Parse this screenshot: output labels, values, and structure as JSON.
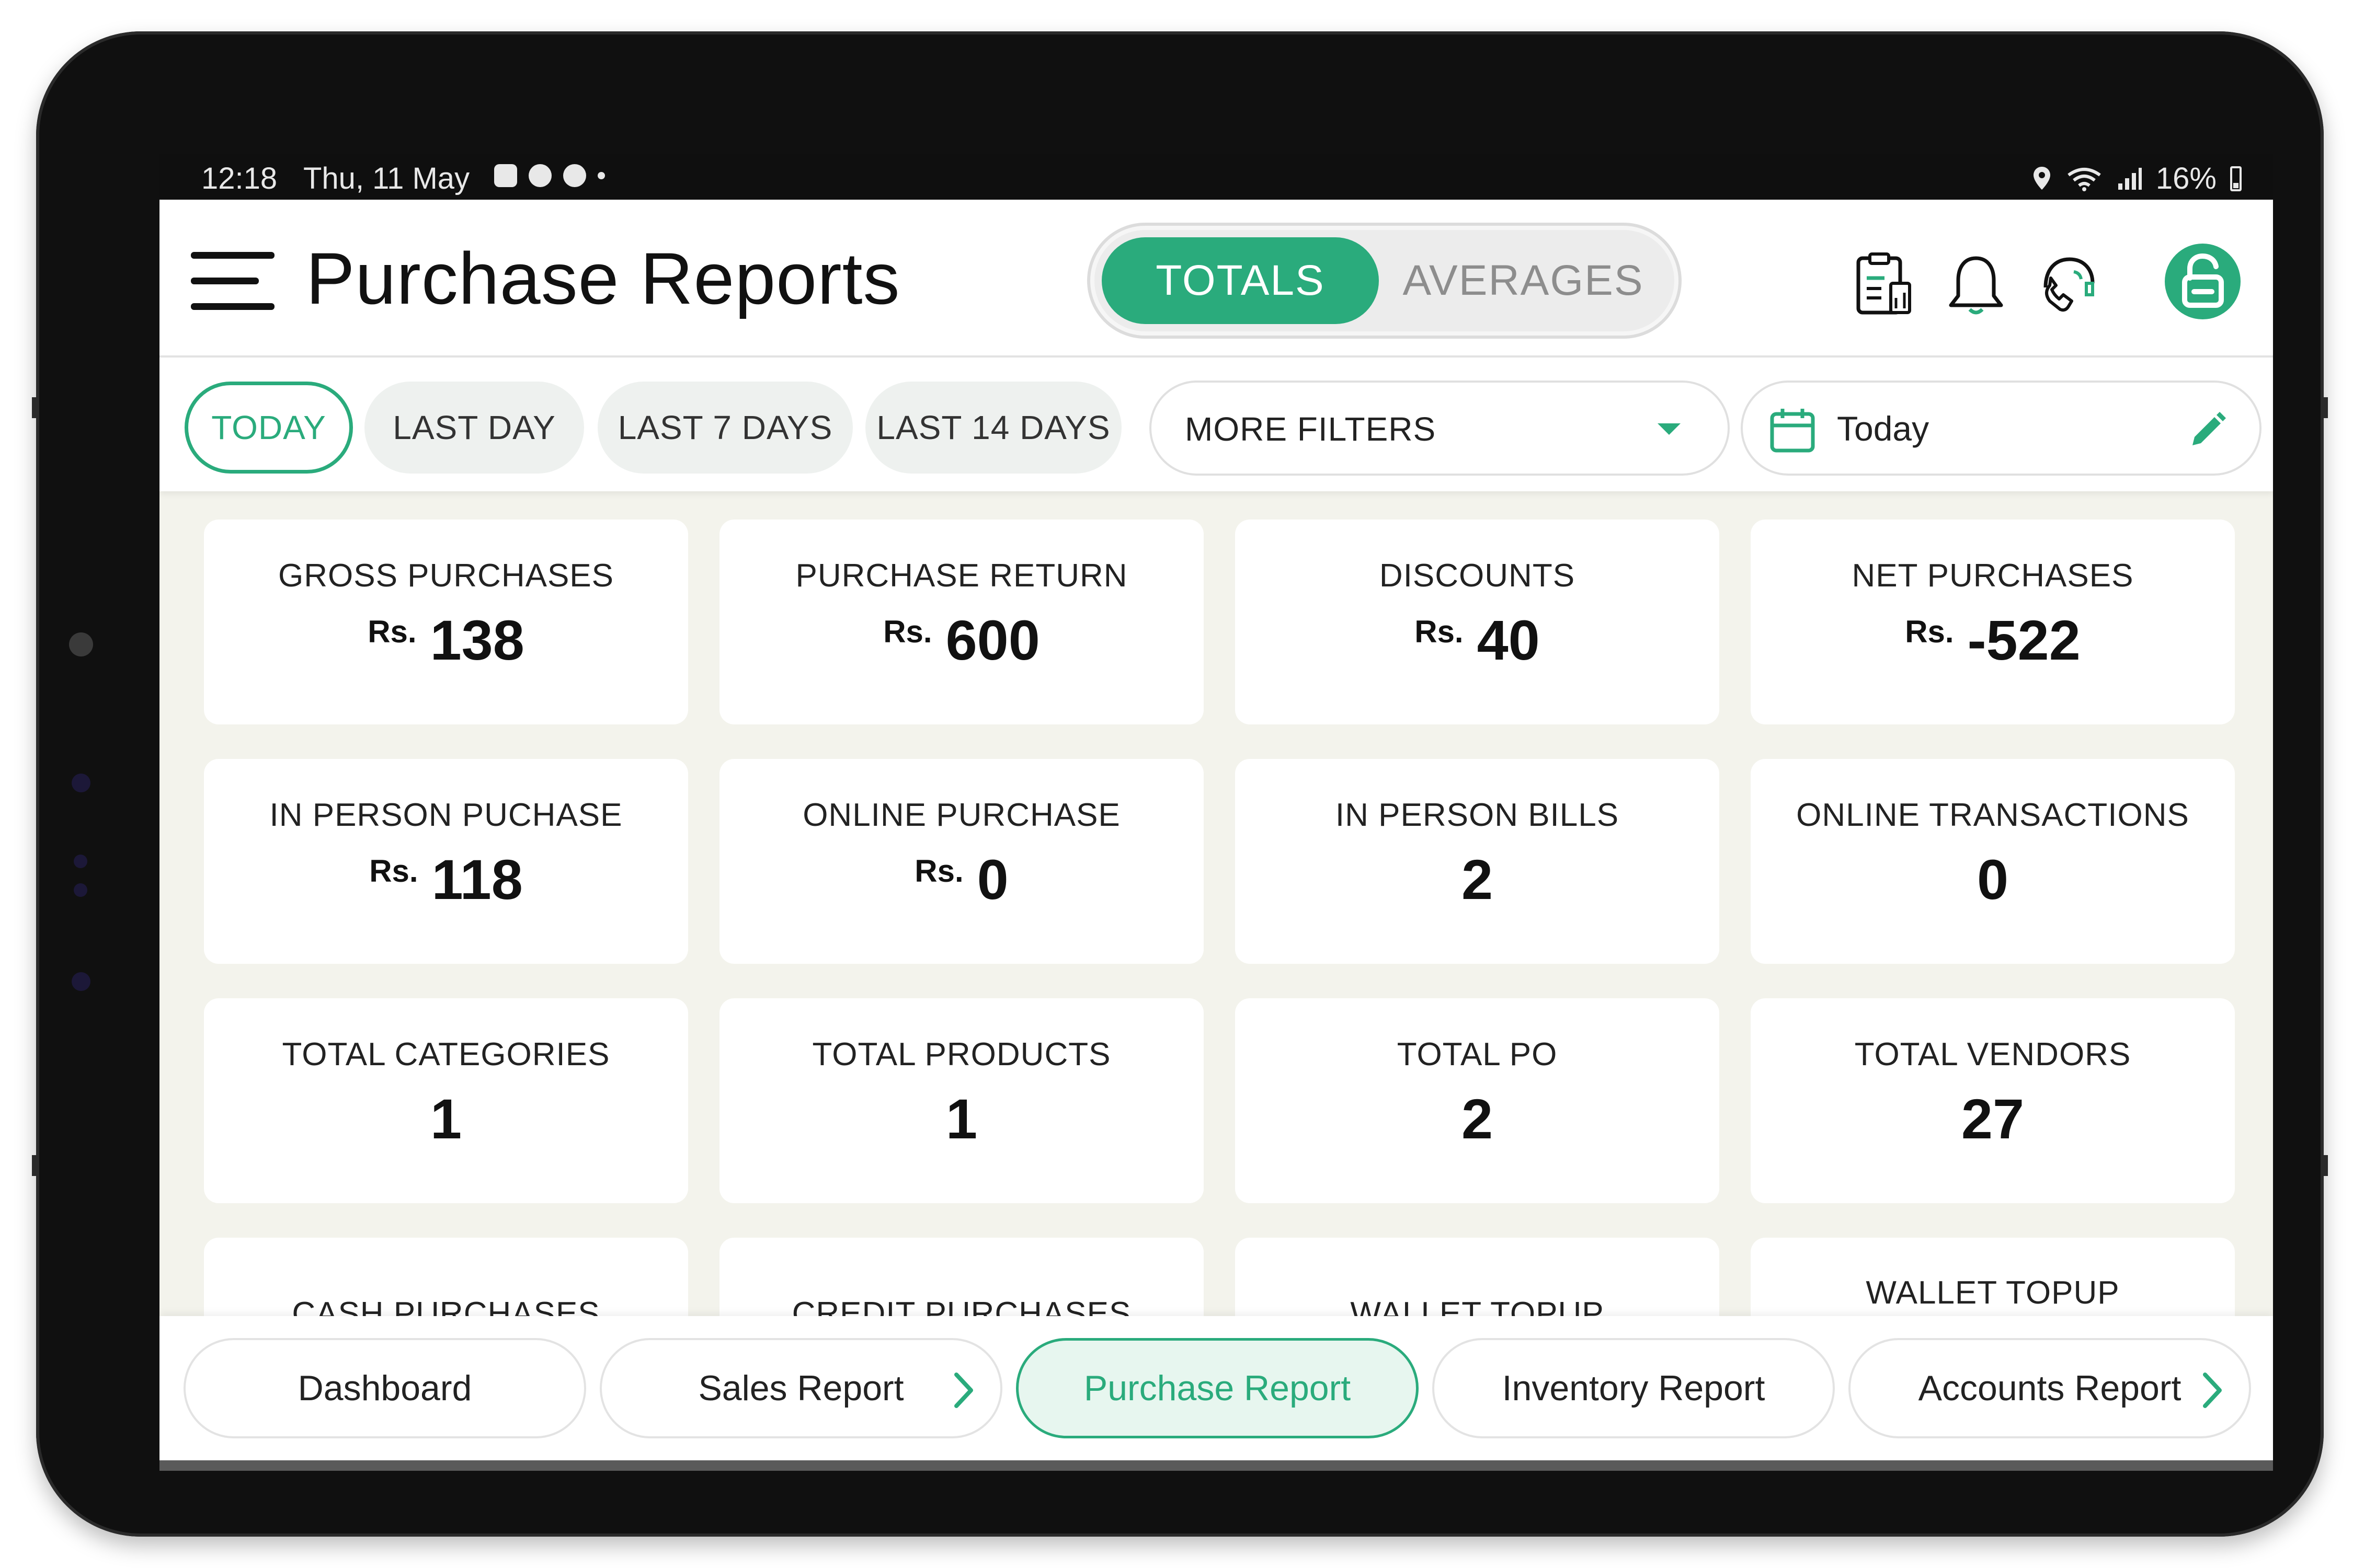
{
  "status_bar": {
    "time": "12:18",
    "date": "Thu, 11 May",
    "battery": "16%"
  },
  "header": {
    "title": "Purchase Reports",
    "toggle": {
      "totals": "TOTALS",
      "averages": "AVERAGES",
      "selected": "TOTALS"
    },
    "icons": [
      "menu-icon",
      "report-clipboard-icon",
      "bell-icon",
      "support-headset-icon",
      "unlock-icon"
    ]
  },
  "filters": {
    "chips": [
      "TODAY",
      "LAST DAY",
      "LAST 7 DAYS",
      "LAST 14 DAYS"
    ],
    "active": "TODAY",
    "more_filters": "MORE FILTERS",
    "date_value": "Today"
  },
  "metrics": [
    {
      "label": "GROSS PURCHASES",
      "currency": "Rs.",
      "value": "138"
    },
    {
      "label": "PURCHASE RETURN",
      "currency": "Rs.",
      "value": "600"
    },
    {
      "label": "DISCOUNTS",
      "currency": "Rs.",
      "value": "40"
    },
    {
      "label": "NET PURCHASES",
      "currency": "Rs.",
      "value": "-522"
    },
    {
      "label": "IN PERSON PUCHASE",
      "currency": "Rs.",
      "value": "118"
    },
    {
      "label": "ONLINE PURCHASE",
      "currency": "Rs.",
      "value": "0"
    },
    {
      "label": "IN PERSON BILLS",
      "currency": "",
      "value": "2"
    },
    {
      "label": "ONLINE TRANSACTIONS",
      "currency": "",
      "value": "0"
    },
    {
      "label": "TOTAL CATEGORIES",
      "currency": "",
      "value": "1"
    },
    {
      "label": "TOTAL PRODUCTS",
      "currency": "",
      "value": "1"
    },
    {
      "label": "TOTAL PO",
      "currency": "",
      "value": "2"
    },
    {
      "label": "TOTAL VENDORS",
      "currency": "",
      "value": "27"
    },
    {
      "label": "CASH PURCHASES",
      "currency": "",
      "value": ""
    },
    {
      "label": "CREDIT PURCHASES",
      "currency": "",
      "value": ""
    },
    {
      "label": "WALLET TOPUP",
      "currency": "",
      "value": ""
    },
    {
      "label": "WALLET TOPUP",
      "currency": "",
      "value": ""
    }
  ],
  "tabs": [
    "Dashboard",
    "Sales Report",
    "Purchase Report",
    "Inventory Report",
    "Accounts Report"
  ],
  "active_tab": "Purchase Report",
  "colors": {
    "accent": "#2aab7c",
    "background": "#f3f3ec",
    "card": "#ffffff"
  }
}
